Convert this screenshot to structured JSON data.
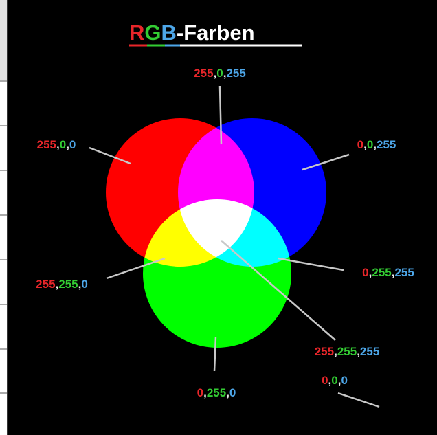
{
  "title_parts": [
    "R",
    "G",
    "B",
    "-Farben"
  ],
  "separator": ",",
  "labels": [
    {
      "parts": [
        "255",
        "0",
        "255"
      ]
    },
    {
      "parts": [
        "255",
        "0",
        "0"
      ]
    },
    {
      "parts": [
        "0",
        "0",
        "255"
      ]
    },
    {
      "parts": [
        "255",
        "255",
        "0"
      ]
    },
    {
      "parts": [
        "0",
        "255",
        "255"
      ]
    },
    {
      "parts": [
        "255",
        "255",
        "255"
      ]
    },
    {
      "parts": [
        "0",
        "255",
        "0"
      ]
    },
    {
      "parts": [
        "0",
        "0",
        "0"
      ]
    }
  ]
}
